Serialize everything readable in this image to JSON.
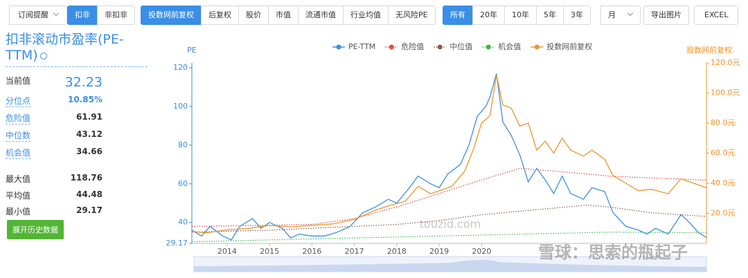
{
  "toolbar": {
    "remind": "订阅提醒",
    "deduct": [
      "扣非",
      "非扣非"
    ],
    "views": [
      "投数网前复权",
      "后复权",
      "股价",
      "市值",
      "流通市值",
      "行业均值",
      "无风险PE"
    ],
    "ranges": [
      "所有",
      "20年",
      "10年",
      "5年",
      "3年"
    ],
    "period": "月",
    "export_image": "导出图片",
    "export_excel": "EXCEL"
  },
  "sidebar": {
    "title": "扣非滚动市盈率(PE-TTM)",
    "stats": [
      {
        "label": "当前值",
        "value": "32.23"
      },
      {
        "label": "分位点",
        "value": "10.85%"
      },
      {
        "label": "危险值",
        "value": "61.91"
      },
      {
        "label": "中位数",
        "value": "43.12"
      },
      {
        "label": "机会值",
        "value": "34.66"
      },
      {
        "label": "最大值",
        "value": "118.76"
      },
      {
        "label": "平均值",
        "value": "44.48"
      },
      {
        "label": "最小值",
        "value": "29.17"
      }
    ],
    "button": "展开历史数据"
  },
  "chart_data": {
    "type": "line",
    "y_label": "PE",
    "y2_label": "投数网前复权",
    "watermarks": [
      "touzid.com",
      "雪球：思索的瓶起子"
    ],
    "xlim": [
      2013.17,
      2025.3
    ],
    "xticks": [
      2014,
      2015,
      2016,
      2017,
      2018,
      2019,
      2020
    ],
    "ylim": [
      29.17,
      122.5
    ],
    "yticks": [
      29.17,
      40,
      60,
      80,
      100,
      120
    ],
    "y2lim": [
      0,
      120
    ],
    "y2ticks": [
      {
        "value": 20,
        "label": "20.0元"
      },
      {
        "value": 40,
        "label": "40.0元"
      },
      {
        "value": 60,
        "label": "60.0元"
      },
      {
        "value": 80,
        "label": "80.0元"
      },
      {
        "value": 100,
        "label": "100.0元"
      },
      {
        "value": 120,
        "label": "120.0元"
      }
    ],
    "grid": false,
    "series": [
      {
        "name": "PE-TTM",
        "color": "#3a8ee6",
        "style": "solid",
        "x": [
          2013.17,
          2013.4,
          2013.6,
          2013.9,
          2014.1,
          2014.3,
          2014.6,
          2014.8,
          2015.0,
          2015.3,
          2015.5,
          2015.7,
          2016.0,
          2016.3,
          2016.6,
          2016.9,
          2017.2,
          2017.5,
          2017.8,
          2018.0,
          2018.3,
          2018.5,
          2018.8,
          2019.0,
          2019.2,
          2019.5,
          2019.7,
          2019.9,
          2020.1,
          2020.2,
          2020.35,
          2020.5,
          2020.7,
          2020.9,
          2021.1,
          2021.3,
          2021.5,
          2021.7,
          2021.9,
          2022.1,
          2022.4,
          2022.6,
          2022.9,
          2023.1,
          2023.4,
          2023.7,
          2023.9,
          2024.1,
          2024.4,
          2024.7,
          2024.9,
          2025.1,
          2025.3
        ],
        "values": [
          36,
          33,
          38,
          33,
          31,
          38,
          42,
          37,
          40,
          37,
          32,
          34,
          33,
          33,
          35,
          38,
          45,
          48,
          52,
          50,
          58,
          64,
          60,
          58,
          65,
          70,
          80,
          95,
          100,
          105,
          117,
          92,
          85,
          75,
          61,
          68,
          62,
          55,
          64,
          55,
          52,
          58,
          56,
          45,
          38,
          36,
          34,
          37,
          34,
          44,
          40,
          35,
          32.23
        ]
      },
      {
        "name": "危险值",
        "color": "#e64a3d",
        "style": "dotted",
        "x": [
          2013.17,
          2015,
          2016,
          2017,
          2018,
          2019,
          2020,
          2020.9,
          2022,
          2023,
          2024,
          2025.3
        ],
        "values": [
          38,
          38.5,
          39,
          42,
          48,
          55,
          62,
          68,
          66,
          64,
          63,
          61.91
        ]
      },
      {
        "name": "中位值",
        "color": "#8b5a4a",
        "style": "dotted",
        "x": [
          2013.17,
          2015,
          2016,
          2017,
          2018,
          2019,
          2020,
          2021,
          2022.5,
          2023,
          2024,
          2025.3
        ],
        "values": [
          35,
          36,
          37,
          38,
          39,
          41,
          44,
          46,
          49,
          48,
          45,
          43.12
        ]
      },
      {
        "name": "机会值",
        "color": "#3cb44b",
        "style": "dotted",
        "x": [
          2013.17,
          2015,
          2017,
          2019,
          2021,
          2023,
          2025.3
        ],
        "values": [
          30,
          31,
          32,
          33,
          34,
          35,
          34.66
        ]
      },
      {
        "name": "投数网前复权",
        "color": "#f0932b",
        "style": "solid",
        "axis": "y2",
        "x": [
          2013.17,
          2013.5,
          2014.0,
          2014.5,
          2015.0,
          2015.5,
          2016.0,
          2016.5,
          2017.0,
          2017.5,
          2017.8,
          2018.2,
          2018.5,
          2018.8,
          2019.0,
          2019.3,
          2019.6,
          2019.8,
          2020.0,
          2020.2,
          2020.35,
          2020.5,
          2020.7,
          2020.9,
          2021.1,
          2021.3,
          2021.5,
          2021.7,
          2021.9,
          2022.1,
          2022.4,
          2022.6,
          2022.9,
          2023.1,
          2023.4,
          2023.7,
          2024.0,
          2024.4,
          2024.7,
          2025.0,
          2025.3
        ],
        "values": [
          8,
          7,
          9,
          10,
          12,
          11,
          12,
          13,
          16,
          22,
          25,
          28,
          38,
          33,
          35,
          38,
          48,
          62,
          80,
          85,
          112,
          92,
          90,
          78,
          80,
          62,
          68,
          60,
          70,
          62,
          58,
          62,
          56,
          45,
          40,
          35,
          36,
          33,
          43,
          40,
          37
        ]
      }
    ]
  }
}
